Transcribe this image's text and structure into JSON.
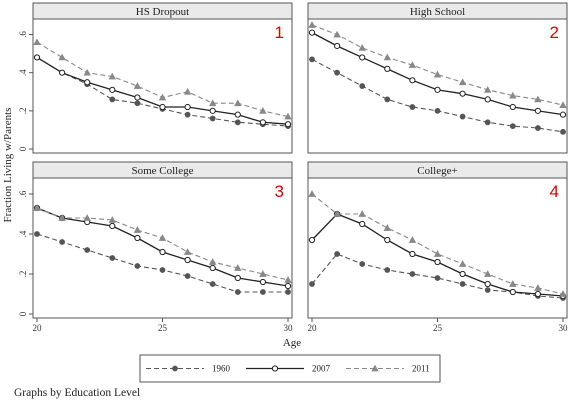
{
  "chart_data": {
    "type": "line",
    "ylabel": "Fraction Living w/Parents",
    "xlabel": "Age",
    "footer": "Graphs by Education Level",
    "xlim": [
      20,
      30
    ],
    "ylim": [
      0,
      0.65
    ],
    "x_ticks": [
      20,
      25,
      30
    ],
    "y_ticks": [
      0,
      0.2,
      0.4,
      0.6
    ],
    "y_tick_labels": [
      "0",
      ".2",
      ".4",
      ".6"
    ],
    "legend": {
      "placement": "bottom",
      "entries": [
        {
          "label": "1960",
          "series": "s1960"
        },
        {
          "label": "2007",
          "series": "s2007"
        },
        {
          "label": "2011",
          "series": "s2011"
        }
      ]
    },
    "series_styles": {
      "s1960": {
        "color": "#555555",
        "dash": "5,3",
        "marker": "circle"
      },
      "s2007": {
        "color": "#222222",
        "dash": "",
        "marker": "circle-open"
      },
      "s2011": {
        "color": "#888888",
        "dash": "5,3",
        "marker": "triangle"
      }
    },
    "x": [
      20,
      21,
      22,
      23,
      24,
      25,
      26,
      27,
      28,
      29,
      30
    ],
    "panels": [
      {
        "title": "HS Dropout",
        "number": "1",
        "series": {
          "s1960": [
            0.48,
            0.4,
            0.34,
            0.26,
            0.24,
            0.21,
            0.18,
            0.16,
            0.14,
            0.13,
            0.12
          ],
          "s2007": [
            0.48,
            0.4,
            0.35,
            0.31,
            0.27,
            0.22,
            0.22,
            0.2,
            0.18,
            0.14,
            0.13
          ],
          "s2011": [
            0.56,
            0.48,
            0.4,
            0.38,
            0.33,
            0.27,
            0.3,
            0.24,
            0.24,
            0.2,
            0.17
          ]
        }
      },
      {
        "title": "High School",
        "number": "2",
        "series": {
          "s1960": [
            0.47,
            0.4,
            0.33,
            0.26,
            0.22,
            0.2,
            0.17,
            0.14,
            0.12,
            0.11,
            0.09
          ],
          "s2007": [
            0.61,
            0.54,
            0.48,
            0.42,
            0.36,
            0.31,
            0.29,
            0.26,
            0.22,
            0.2,
            0.18
          ],
          "s2011": [
            0.65,
            0.6,
            0.53,
            0.48,
            0.44,
            0.39,
            0.35,
            0.31,
            0.28,
            0.26,
            0.23
          ]
        }
      },
      {
        "title": "Some College",
        "number": "3",
        "series": {
          "s1960": [
            0.4,
            0.36,
            0.32,
            0.28,
            0.24,
            0.22,
            0.19,
            0.15,
            0.11,
            0.11,
            0.11
          ],
          "s2007": [
            0.53,
            0.48,
            0.46,
            0.44,
            0.38,
            0.31,
            0.27,
            0.23,
            0.18,
            0.16,
            0.14
          ],
          "s2011": [
            0.53,
            0.48,
            0.48,
            0.47,
            0.42,
            0.38,
            0.31,
            0.26,
            0.23,
            0.2,
            0.17
          ]
        }
      },
      {
        "title": "College+",
        "number": "4",
        "series": {
          "s1960": [
            0.15,
            0.3,
            0.25,
            0.22,
            0.2,
            0.18,
            0.15,
            0.12,
            0.11,
            0.09,
            0.08
          ],
          "s2007": [
            0.37,
            0.5,
            0.45,
            0.37,
            0.3,
            0.26,
            0.2,
            0.15,
            0.11,
            0.1,
            0.09
          ],
          "s2011": [
            0.6,
            0.5,
            0.5,
            0.43,
            0.37,
            0.3,
            0.25,
            0.2,
            0.15,
            0.13,
            0.1
          ]
        }
      }
    ]
  }
}
